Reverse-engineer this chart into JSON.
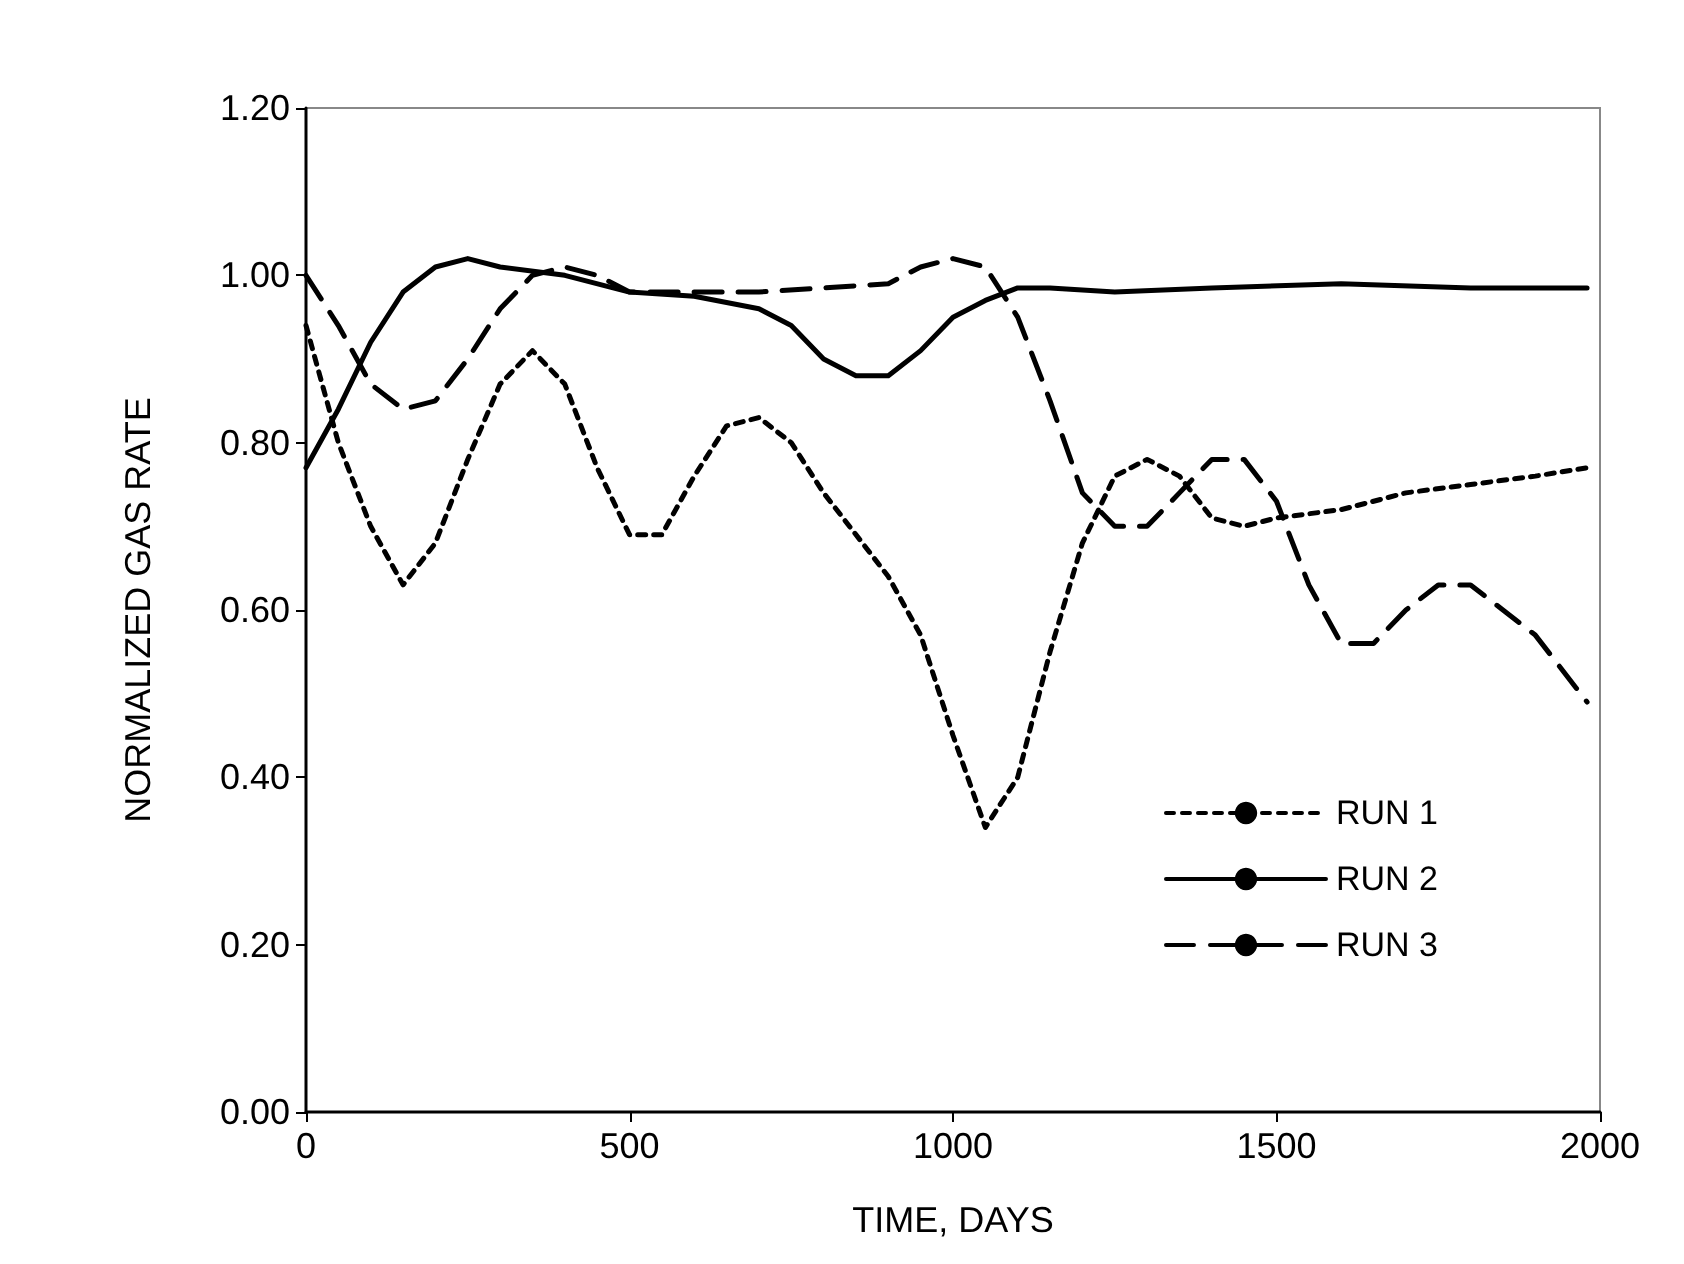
{
  "chart_data": {
    "type": "line",
    "xlabel": "TIME, DAYS",
    "ylabel": "NORMALIZED GAS RATE",
    "xlim": [
      0,
      2000
    ],
    "xticks": [
      0,
      500,
      1000,
      1500,
      2000
    ],
    "ylim": [
      0,
      1.2
    ],
    "yticks": [
      {
        "value": 0,
        "label": "0.00"
      },
      {
        "value": 0.2,
        "label": "0.20"
      },
      {
        "value": 0.4,
        "label": "0.40"
      },
      {
        "value": 0.6,
        "label": "0.60"
      },
      {
        "value": 0.8,
        "label": "0.80"
      },
      {
        "value": 1.0,
        "label": "1.00"
      },
      {
        "value": 1.2,
        "label": "1.20"
      }
    ],
    "grid": false,
    "legend": "right",
    "marker": "none",
    "series": [
      {
        "name": "RUN 1",
        "color": "#000000",
        "line_style": "dotted",
        "x": [
          0,
          50,
          100,
          150,
          200,
          250,
          300,
          350,
          400,
          450,
          500,
          550,
          600,
          650,
          700,
          750,
          800,
          900,
          950,
          1000,
          1050,
          1100,
          1150,
          1200,
          1250,
          1300,
          1350,
          1400,
          1450,
          1500,
          1600,
          1700,
          1800,
          1900,
          1980
        ],
        "values": [
          0.94,
          0.8,
          0.7,
          0.63,
          0.68,
          0.78,
          0.87,
          0.91,
          0.87,
          0.77,
          0.69,
          0.69,
          0.76,
          0.82,
          0.83,
          0.8,
          0.74,
          0.64,
          0.57,
          0.45,
          0.34,
          0.4,
          0.55,
          0.68,
          0.76,
          0.78,
          0.76,
          0.71,
          0.7,
          0.71,
          0.72,
          0.74,
          0.75,
          0.76,
          0.77
        ]
      },
      {
        "name": "RUN 2",
        "color": "#000000",
        "line_style": "solid",
        "x": [
          0,
          50,
          100,
          150,
          200,
          250,
          300,
          400,
          500,
          600,
          700,
          750,
          800,
          850,
          900,
          950,
          1000,
          1050,
          1100,
          1150,
          1250,
          1400,
          1600,
          1800,
          1980
        ],
        "values": [
          0.77,
          0.84,
          0.92,
          0.98,
          1.01,
          1.02,
          1.01,
          1.0,
          0.98,
          0.975,
          0.96,
          0.94,
          0.9,
          0.88,
          0.88,
          0.91,
          0.95,
          0.97,
          0.985,
          0.985,
          0.98,
          0.985,
          0.99,
          0.985,
          0.985
        ]
      },
      {
        "name": "RUN 3",
        "color": "#000000",
        "line_style": "dashed",
        "x": [
          0,
          50,
          100,
          150,
          200,
          250,
          300,
          350,
          400,
          450,
          500,
          600,
          700,
          800,
          900,
          950,
          1000,
          1050,
          1100,
          1150,
          1200,
          1250,
          1300,
          1350,
          1400,
          1450,
          1500,
          1550,
          1600,
          1650,
          1700,
          1750,
          1800,
          1850,
          1900,
          1980
        ],
        "values": [
          1.0,
          0.94,
          0.87,
          0.84,
          0.85,
          0.9,
          0.96,
          1.0,
          1.01,
          1.0,
          0.98,
          0.98,
          0.98,
          0.985,
          0.99,
          1.01,
          1.02,
          1.01,
          0.95,
          0.85,
          0.74,
          0.7,
          0.7,
          0.74,
          0.78,
          0.78,
          0.73,
          0.63,
          0.56,
          0.56,
          0.6,
          0.63,
          0.63,
          0.6,
          0.57,
          0.49
        ]
      }
    ]
  }
}
